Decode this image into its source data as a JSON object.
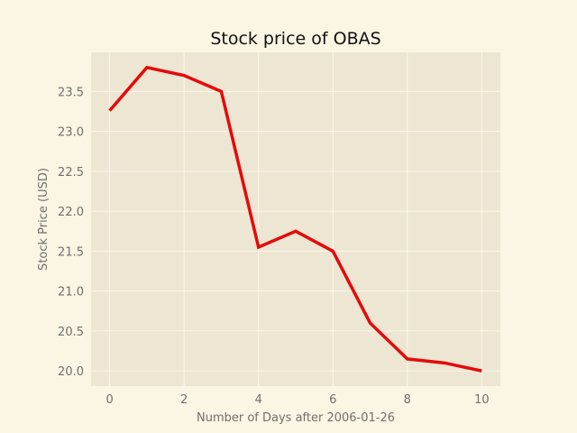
{
  "chart_data": {
    "type": "line",
    "title": "Stock price of OBAS",
    "xlabel": "Number of Days after 2006-01-26",
    "ylabel": "Stock Price (USD)",
    "x": [
      0,
      1,
      2,
      3,
      4,
      5,
      6,
      7,
      8,
      9,
      10
    ],
    "series": [
      {
        "values": [
          23.26,
          23.8,
          23.7,
          23.5,
          21.55,
          21.75,
          21.5,
          20.6,
          20.15,
          20.1,
          20.0
        ]
      }
    ],
    "xlim": [
      -0.5,
      10.5
    ],
    "ylim": [
      19.81,
      23.99
    ],
    "xticks": [
      0,
      2,
      4,
      6,
      8,
      10
    ],
    "xtick_labels": [
      "0",
      "2",
      "4",
      "6",
      "8",
      "10"
    ],
    "yticks": [
      20.0,
      20.5,
      21.0,
      21.5,
      22.0,
      22.5,
      23.0,
      23.5
    ],
    "ytick_labels": [
      "20.0",
      "20.5",
      "21.0",
      "21.5",
      "22.0",
      "22.5",
      "23.0",
      "23.5"
    ],
    "grid": true,
    "colors": {
      "line": "#e50a0a",
      "plot_background": "#ede6d3",
      "page_background": "#fbf5e3",
      "grid": "#fbf7ec"
    }
  }
}
